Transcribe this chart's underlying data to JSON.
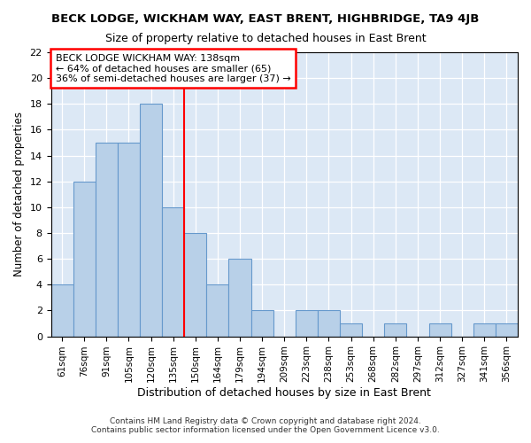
{
  "title": "BECK LODGE, WICKHAM WAY, EAST BRENT, HIGHBRIDGE, TA9 4JB",
  "subtitle": "Size of property relative to detached houses in East Brent",
  "xlabel": "Distribution of detached houses by size in East Brent",
  "ylabel": "Number of detached properties",
  "categories": [
    "61sqm",
    "76sqm",
    "91sqm",
    "105sqm",
    "120sqm",
    "135sqm",
    "150sqm",
    "164sqm",
    "179sqm",
    "194sqm",
    "209sqm",
    "223sqm",
    "238sqm",
    "253sqm",
    "268sqm",
    "282sqm",
    "297sqm",
    "312sqm",
    "327sqm",
    "341sqm",
    "356sqm"
  ],
  "values": [
    4,
    12,
    15,
    15,
    18,
    10,
    8,
    4,
    6,
    2,
    0,
    2,
    2,
    1,
    0,
    1,
    0,
    1,
    0,
    1,
    1
  ],
  "bar_color": "#b8d0e8",
  "bar_edge_color": "#6699cc",
  "annotation_title": "BECK LODGE WICKHAM WAY: 138sqm",
  "annotation_line1": "← 64% of detached houses are smaller (65)",
  "annotation_line2": "36% of semi-detached houses are larger (37) →",
  "ylim": [
    0,
    22
  ],
  "yticks": [
    0,
    2,
    4,
    6,
    8,
    10,
    12,
    14,
    16,
    18,
    20,
    22
  ],
  "footer1": "Contains HM Land Registry data © Crown copyright and database right 2024.",
  "footer2": "Contains public sector information licensed under the Open Government Licence v3.0.",
  "bg_color": "#ffffff",
  "plot_bg_color": "#dce8f5"
}
